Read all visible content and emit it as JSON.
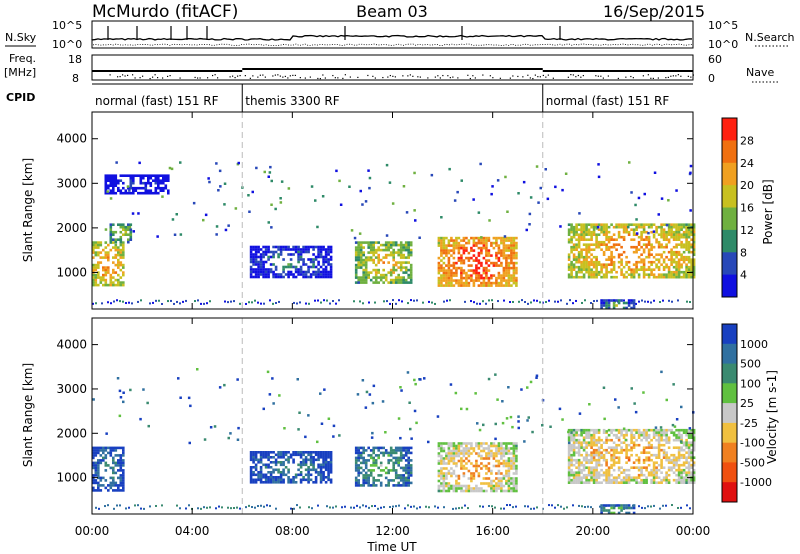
{
  "header": {
    "station": "McMurdo (fitACF)",
    "beam": "Beam 03",
    "date": "16/Sep/2015"
  },
  "noise_panel": {
    "left_label": "N.Sky",
    "right_label": "N.Search",
    "ticks": [
      "10^5",
      "10^0"
    ]
  },
  "freq_panel": {
    "left_label_1": "Freq.",
    "left_label_2": "[MHz]",
    "left_ticks": [
      "18",
      "8"
    ],
    "right_label": "Nave",
    "right_ticks": [
      "60",
      "0"
    ]
  },
  "cpid": {
    "label": "CPID",
    "segments": [
      {
        "start": 0,
        "end": 6,
        "text": "normal (fast) 151 RF"
      },
      {
        "start": 6,
        "end": 18,
        "text": "themis 3300 RF"
      },
      {
        "start": 18,
        "end": 24,
        "text": "normal (fast) 151 RF"
      }
    ]
  },
  "time_axis": {
    "label": "Time UT",
    "ticks": [
      "00:00",
      "04:00",
      "08:00",
      "12:00",
      "16:00",
      "20:00",
      "00:00"
    ],
    "range_hours": [
      0,
      24
    ]
  },
  "chart_data": [
    {
      "type": "heatmap",
      "name": "power",
      "ylabel": "Slant Range [km]",
      "ylim": [
        180,
        4600
      ],
      "yticks": [
        "1000",
        "2000",
        "3000",
        "4000"
      ],
      "colorbar": {
        "label": "Power [dB]",
        "ticks": [
          "4",
          "8",
          "12",
          "16",
          "20",
          "24",
          "28"
        ],
        "colors": [
          "#1010e0",
          "#2848b8",
          "#2e8a68",
          "#6fb040",
          "#c8c020",
          "#f0a020",
          "#f07010",
          "#ff2010"
        ]
      },
      "echo_regions": [
        {
          "t": [
            0.0,
            1.2
          ],
          "r": [
            700,
            1700
          ],
          "level": 6
        },
        {
          "t": [
            0.7,
            1.5
          ],
          "r": [
            1700,
            2100
          ],
          "level": 4
        },
        {
          "t": [
            0.5,
            3.0
          ],
          "r": [
            2800,
            3200
          ],
          "level": 1
        },
        {
          "t": [
            6.3,
            9.5
          ],
          "r": [
            900,
            1600
          ],
          "level": 2
        },
        {
          "t": [
            10.5,
            12.7
          ],
          "r": [
            800,
            1700
          ],
          "level": 5
        },
        {
          "t": [
            13.8,
            16.9
          ],
          "r": [
            700,
            1800
          ],
          "level": 7
        },
        {
          "t": [
            19.0,
            24.0
          ],
          "r": [
            900,
            2100
          ],
          "level": 6
        },
        {
          "t": [
            20.3,
            21.6
          ],
          "r": [
            180,
            400
          ],
          "level": 3
        }
      ]
    },
    {
      "type": "heatmap",
      "name": "velocity",
      "ylabel": "Slant Range [km]",
      "ylim": [
        180,
        4600
      ],
      "yticks": [
        "1000",
        "2000",
        "3000",
        "4000"
      ],
      "colorbar": {
        "label": "Velocity [m s-1]",
        "ticks": [
          "1000",
          "500",
          "100",
          "25",
          "-25",
          "-100",
          "-500",
          "-1000"
        ],
        "colors": [
          "#1840c0",
          "#3070a0",
          "#3a8a70",
          "#60c040",
          "#c8c8c8",
          "#f0c040",
          "#f08020",
          "#f05010",
          "#e01010"
        ]
      },
      "echo_regions": [
        {
          "t": [
            0.0,
            1.2
          ],
          "r": [
            700,
            1700
          ],
          "level": 2
        },
        {
          "t": [
            6.3,
            9.5
          ],
          "r": [
            900,
            1600
          ],
          "level": 2
        },
        {
          "t": [
            10.5,
            12.7
          ],
          "r": [
            800,
            1700
          ],
          "level": 3
        },
        {
          "t": [
            13.8,
            16.9
          ],
          "r": [
            700,
            1800
          ],
          "level": 6
        },
        {
          "t": [
            19.0,
            24.0
          ],
          "r": [
            900,
            2100
          ],
          "level": 6
        },
        {
          "t": [
            20.3,
            21.6
          ],
          "r": [
            180,
            400
          ],
          "level": 3
        }
      ]
    }
  ]
}
